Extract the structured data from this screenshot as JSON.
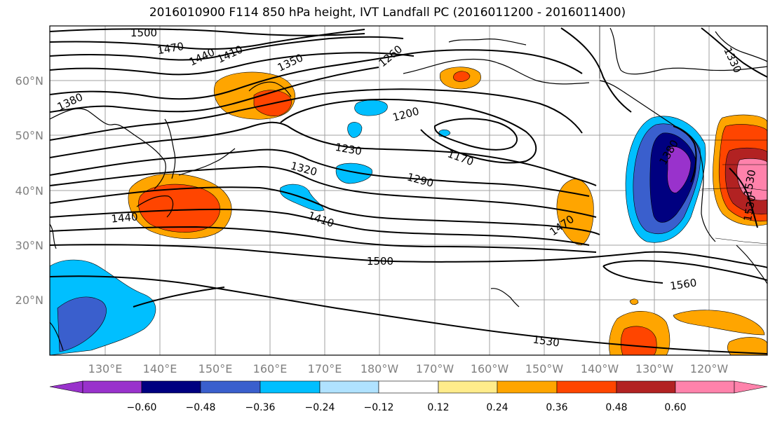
{
  "title": "2016010900 F114 850 hPa height, IVT Landfall PC (2016011200 - 2016011400)",
  "map": {
    "longitude_labels": [
      "130°E",
      "140°E",
      "150°E",
      "160°E",
      "170°E",
      "180°W",
      "170°W",
      "160°W",
      "150°W",
      "140°W",
      "130°W",
      "120°W"
    ],
    "latitude_labels": [
      "20°N",
      "30°N",
      "40°N",
      "50°N",
      "60°N"
    ],
    "contour_labels": [
      "1500",
      "1470",
      "1440",
      "1410",
      "1350",
      "1260",
      "1330",
      "1380",
      "1200",
      "1230",
      "1170",
      "1320",
      "1290",
      "1410",
      "1440",
      "1470",
      "1500",
      "1380",
      "1530",
      "1560",
      "1530",
      "1530"
    ],
    "fill_colors": {
      "purple": "#9932CC",
      "navy": "#000080",
      "blue": "#3A5FCD",
      "deepskyblue": "#00BFFF",
      "lightblue": "#B0E2FF",
      "lightyellow": "#FFEC8B",
      "orange": "#FFA500",
      "orangered": "#FF4500",
      "firebrick": "#B22222",
      "pink": "#FF82AB"
    }
  },
  "colorbar": {
    "tick_labels": [
      "−0.60",
      "−0.48",
      "−0.36",
      "−0.24",
      "−0.12",
      "0.12",
      "0.24",
      "0.36",
      "0.48",
      "0.60"
    ],
    "colors": [
      "#9932CC",
      "#000080",
      "#3A5FCD",
      "#00BFFF",
      "#B0E2FF",
      "#FFFFFF",
      "#FFEC8B",
      "#FFA500",
      "#FF4500",
      "#B22222",
      "#FF82AB"
    ]
  }
}
